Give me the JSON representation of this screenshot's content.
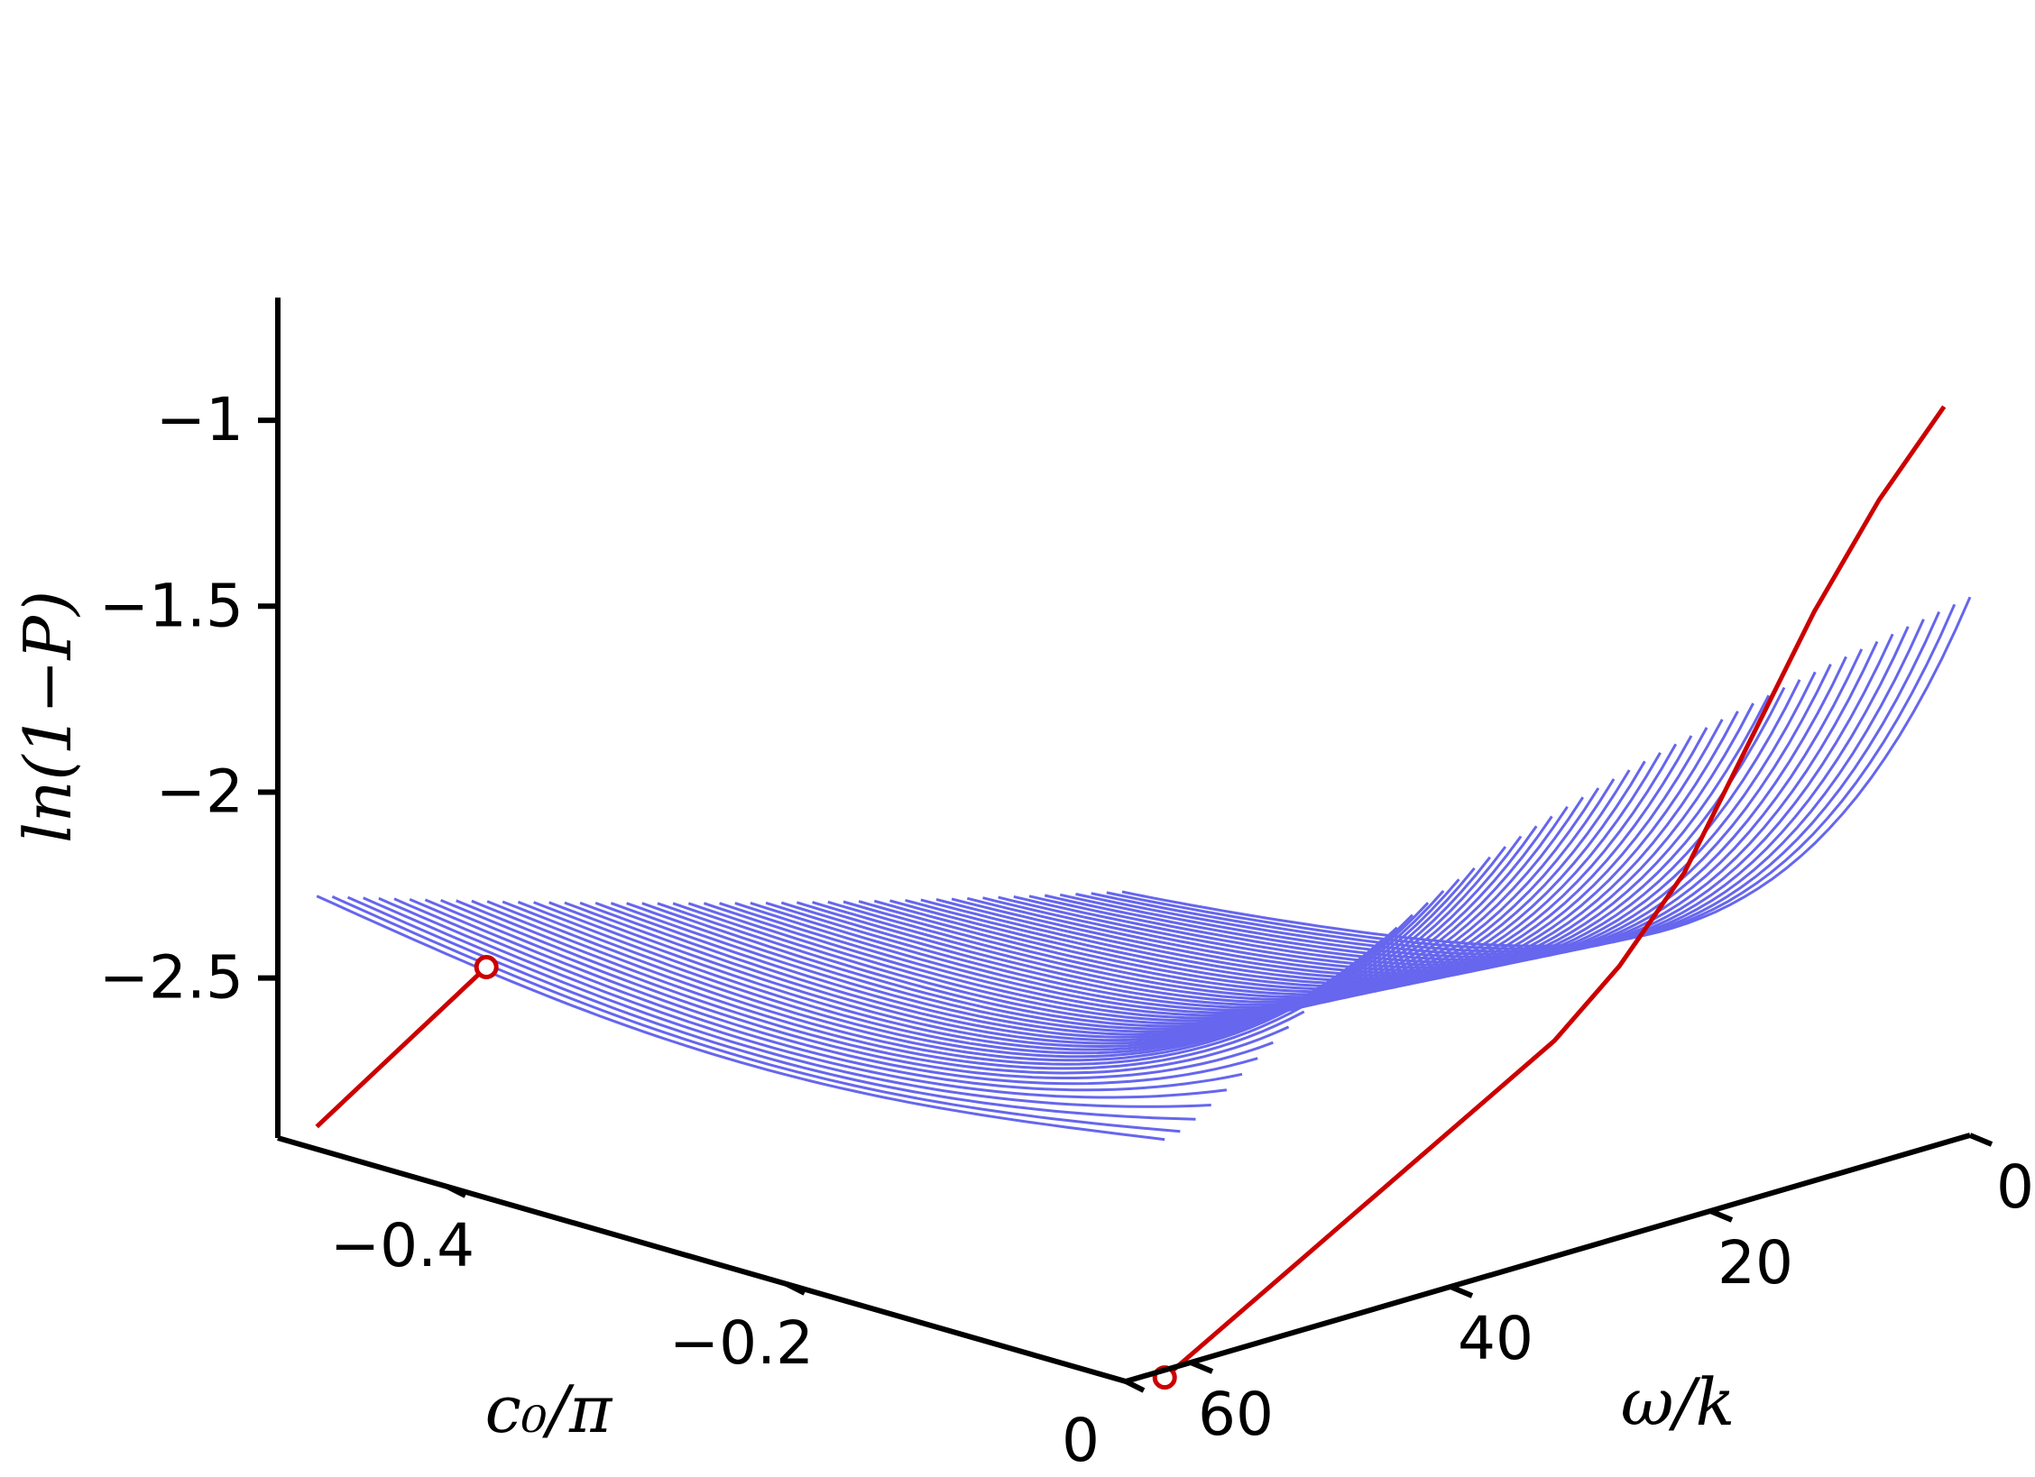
{
  "chart_data": {
    "type": "line",
    "projection": "3d",
    "axes": {
      "x": {
        "label": "c₀/π",
        "range": [
          -0.5,
          0
        ],
        "ticks": [
          {
            "value": -0.4,
            "label": "−0.4"
          },
          {
            "value": -0.2,
            "label": "−0.2"
          },
          {
            "value": 0,
            "label": "0"
          }
        ]
      },
      "y": {
        "label": "ω/k",
        "range": [
          0,
          65
        ],
        "ticks": [
          {
            "value": 60,
            "label": "60"
          },
          {
            "value": 40,
            "label": "40"
          },
          {
            "value": 20,
            "label": "20"
          },
          {
            "value": 0,
            "label": "0"
          }
        ]
      },
      "z": {
        "label": "ln(1−P)",
        "range": [
          -2.93,
          -0.67
        ],
        "ticks": [
          {
            "value": -1,
            "label": "−1"
          },
          {
            "value": -1.5,
            "label": "−1.5"
          },
          {
            "value": -2,
            "label": "−2"
          },
          {
            "value": -2.5,
            "label": "−2.5"
          }
        ]
      }
    },
    "surface_lines": {
      "color": "#6666ee",
      "count": 53,
      "omega_range": [
        0,
        62
      ],
      "c0_range": [
        -0.5,
        0
      ],
      "description_free": true
    },
    "edge_curves": [
      {
        "color": "#cc0000",
        "points": [
          [
            -0.5,
            0,
            -2.93
          ],
          [
            -0.4,
            0,
            -2.37
          ]
        ],
        "end_marker": [
          -0.4,
          0,
          -2.37
        ]
      },
      {
        "color": "#cc0000",
        "points": [
          [
            0,
            0,
            -2.95
          ],
          [
            0,
            5,
            -2.85
          ],
          [
            0,
            10,
            -2.75
          ],
          [
            0,
            15,
            -2.65
          ],
          [
            0,
            20,
            -2.55
          ],
          [
            0,
            25,
            -2.45
          ],
          [
            0,
            30,
            -2.35
          ],
          [
            0,
            35,
            -2.2
          ],
          [
            0,
            40,
            -2.0
          ],
          [
            0,
            45,
            -1.7
          ],
          [
            0,
            50,
            -1.4
          ],
          [
            0,
            55,
            -1.15
          ],
          [
            0,
            60,
            -0.95
          ]
        ],
        "end_marker": [
          0,
          0,
          -2.95
        ]
      }
    ],
    "legend": "none",
    "grid": false
  }
}
